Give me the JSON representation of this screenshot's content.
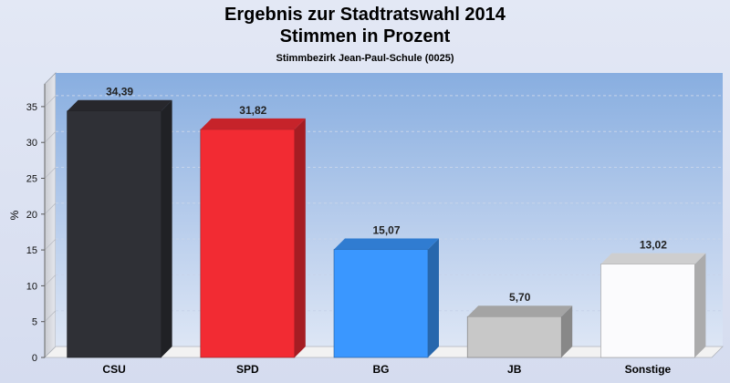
{
  "chart_data": {
    "type": "bar",
    "title": "Ergebnis zur Stadtratswahl 2014",
    "title2": "Stimmen in Prozent",
    "subtitle": "Stimmbezirk Jean-Paul-Schule (0025)",
    "ylabel": "%",
    "ylim": [
      0,
      38
    ],
    "yticks": [
      0,
      5,
      10,
      15,
      20,
      25,
      30,
      35
    ],
    "grid": true,
    "categories": [
      "CSU",
      "SPD",
      "BG",
      "JB",
      "Sonstige"
    ],
    "values": [
      34.39,
      31.82,
      15.07,
      5.7,
      13.02
    ],
    "value_labels": [
      "34,39",
      "31,82",
      "15,07",
      "5,70",
      "13,02"
    ],
    "colors": [
      "#2f3036",
      "#f22b33",
      "#3a97ff",
      "#c8c8c8",
      "#fbfbfd"
    ]
  }
}
